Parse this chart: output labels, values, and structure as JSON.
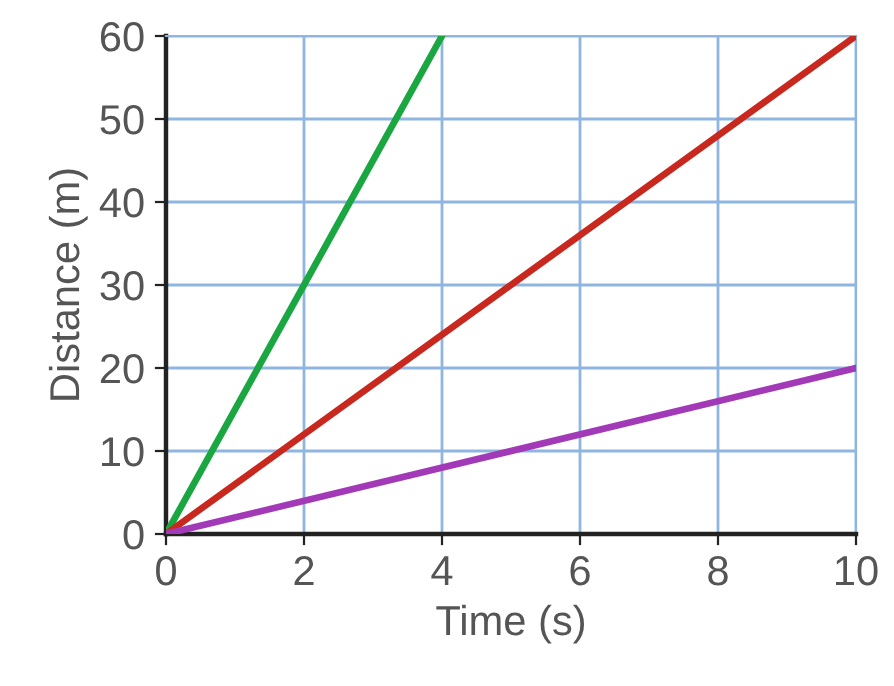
{
  "chart_data": {
    "type": "line",
    "xlabel": "Time (s)",
    "ylabel": "Distance (m)",
    "series": [
      {
        "color": "#1aa640",
        "x": [
          0,
          4
        ],
        "values": [
          0,
          60
        ]
      },
      {
        "color": "#c8281e",
        "x": [
          0,
          10
        ],
        "values": [
          0,
          60
        ]
      },
      {
        "color": "#a23ab8",
        "x": [
          0,
          10
        ],
        "values": [
          0,
          20
        ]
      }
    ],
    "xlim": [
      0,
      10
    ],
    "ylim": [
      0,
      60
    ],
    "xticks": [
      0,
      2,
      4,
      6,
      8,
      10
    ],
    "yticks": [
      0,
      10,
      20,
      30,
      40,
      50,
      60
    ],
    "grid": true,
    "marker": "none",
    "line_style": "solid",
    "legend": false
  }
}
